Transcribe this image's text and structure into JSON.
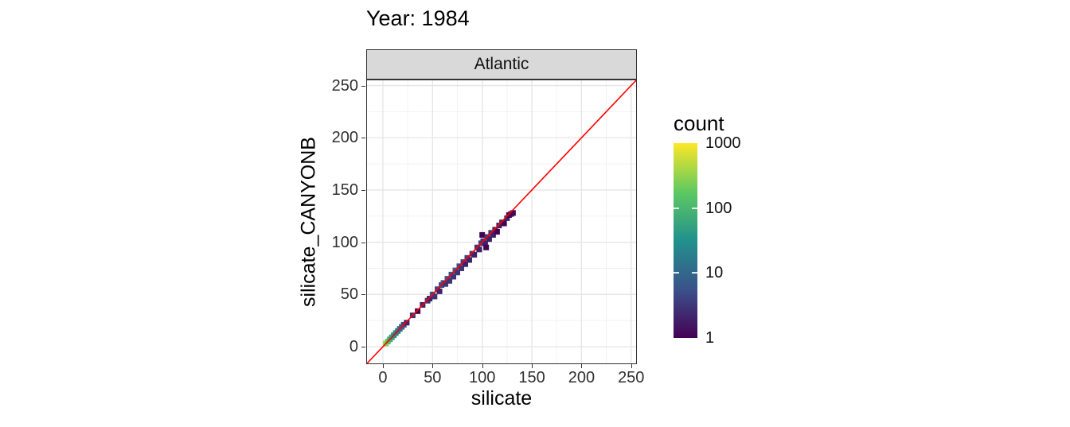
{
  "chart_data": {
    "type": "scatter",
    "title": "Year: 1984",
    "facet": "Atlantic",
    "xlabel": "silicate",
    "ylabel": "silicate_CANYONB",
    "xlim": [
      -16,
      255
    ],
    "ylim": [
      -16,
      255
    ],
    "xticks": [
      0,
      50,
      100,
      150,
      200,
      250
    ],
    "yticks": [
      0,
      50,
      100,
      150,
      200,
      250
    ],
    "minor_ticks": [
      25,
      75,
      125,
      175,
      225
    ],
    "grid": true,
    "identity_line": {
      "slope": 1,
      "intercept": 0,
      "color": "#FF0000"
    },
    "colors": {
      "facet_strip_bg": "#D9D9D9",
      "panel_border": "#333333",
      "grid_major": "#E5E5E5",
      "grid_minor": "#F2F2F2",
      "tick_label": "#303030"
    },
    "legend": {
      "title": "count",
      "scale": "log10",
      "range": [
        1,
        1000
      ],
      "tick_values": [
        1000,
        100,
        10,
        1
      ],
      "inner_ticks": [
        100,
        10
      ],
      "viridis_stops": [
        "#440154",
        "#3B528B",
        "#21918C",
        "#5EC962",
        "#FDE725"
      ]
    },
    "points": [
      [
        3,
        3,
        300
      ],
      [
        5,
        5,
        150
      ],
      [
        7,
        7,
        80
      ],
      [
        9,
        9,
        50
      ],
      [
        11,
        11,
        35
      ],
      [
        13,
        13,
        25
      ],
      [
        15,
        15,
        18
      ],
      [
        17,
        17,
        12
      ],
      [
        19,
        19,
        8
      ],
      [
        21,
        21,
        5
      ],
      [
        24,
        23,
        2
      ],
      [
        30,
        30,
        3
      ],
      [
        35,
        34,
        1
      ],
      [
        40,
        40,
        2
      ],
      [
        45,
        44,
        3
      ],
      [
        47,
        46,
        2
      ],
      [
        50,
        50,
        6
      ],
      [
        52,
        48,
        3
      ],
      [
        55,
        55,
        4
      ],
      [
        57,
        53,
        2
      ],
      [
        59,
        59,
        5
      ],
      [
        61,
        61,
        6
      ],
      [
        63,
        60,
        3
      ],
      [
        65,
        65,
        7
      ],
      [
        67,
        63,
        3
      ],
      [
        69,
        69,
        6
      ],
      [
        71,
        67,
        3
      ],
      [
        73,
        73,
        8
      ],
      [
        75,
        71,
        3
      ],
      [
        77,
        77,
        5
      ],
      [
        79,
        75,
        3
      ],
      [
        81,
        81,
        4
      ],
      [
        83,
        79,
        2
      ],
      [
        85,
        85,
        4
      ],
      [
        87,
        83,
        2
      ],
      [
        90,
        89,
        3
      ],
      [
        92,
        88,
        2
      ],
      [
        95,
        95,
        3
      ],
      [
        97,
        93,
        2
      ],
      [
        99,
        99,
        4
      ],
      [
        101,
        101,
        3
      ],
      [
        100,
        107,
        1
      ],
      [
        103,
        99,
        2
      ],
      [
        104,
        95,
        1
      ],
      [
        105,
        105,
        3
      ],
      [
        107,
        103,
        2
      ],
      [
        109,
        109,
        3
      ],
      [
        111,
        107,
        2
      ],
      [
        113,
        112,
        2
      ],
      [
        115,
        110,
        1
      ],
      [
        117,
        116,
        2
      ],
      [
        120,
        119,
        2
      ],
      [
        122,
        118,
        1
      ],
      [
        125,
        123,
        2
      ],
      [
        127,
        126,
        1
      ],
      [
        129,
        127,
        1
      ],
      [
        131,
        128,
        1
      ]
    ]
  }
}
